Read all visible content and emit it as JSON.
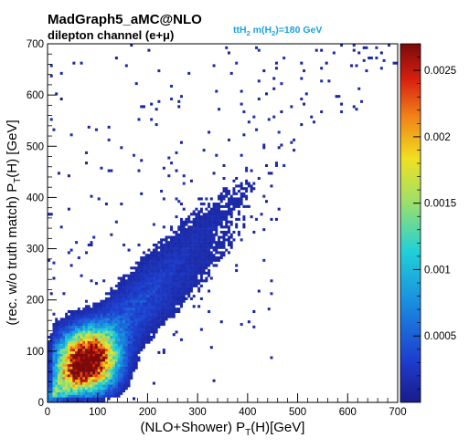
{
  "header": {
    "generator": "MadGraph5_aMC@NLO",
    "channel": "dilepton channel (e+μ)",
    "process": "ttH₂ m(H₂)=180 GeV"
  },
  "colors": {
    "process_label": "#1aa3e0",
    "palette": [
      "#1a1a8a",
      "#1d3fd0",
      "#1a8ee0",
      "#20d0d8",
      "#9ee06a",
      "#f0e020",
      "#f08018",
      "#d82010",
      "#7a0a0a"
    ]
  },
  "chart_data": {
    "type": "heatmap",
    "title": "MadGraph5_aMC@NLO",
    "subtitle": "dilepton channel (e+μ)",
    "annotation": "ttH₂ m(H₂)=180 GeV",
    "xlabel": "(NLO+Shower) P_T(H)[GeV]",
    "ylabel": "(rec. w/o truth match) P_T(H) [GeV]",
    "xlim": [
      0,
      700
    ],
    "ylim": [
      0,
      700
    ],
    "x_ticks": [
      0,
      100,
      200,
      300,
      400,
      500,
      600,
      700
    ],
    "y_ticks": [
      0,
      100,
      200,
      300,
      400,
      500,
      600,
      700
    ],
    "bin_width": 5,
    "z_range": [
      0,
      0.0027
    ],
    "colorbar_ticks": [
      "0.0005",
      "0.001",
      "0.0015",
      "0.002",
      "0.0025"
    ],
    "colorbar_tick_values": [
      0.0005,
      0.001,
      0.0015,
      0.002,
      0.0025
    ],
    "colorscale": "rainbow",
    "grid": false,
    "legend": "none",
    "density_model": {
      "peak_center_gev": [
        80,
        80
      ],
      "peak_value": 0.0027,
      "description": "2D normalized distribution concentrated along the diagonal with a core near (80, 80) GeV and sparse outliers above the diagonal"
    }
  }
}
